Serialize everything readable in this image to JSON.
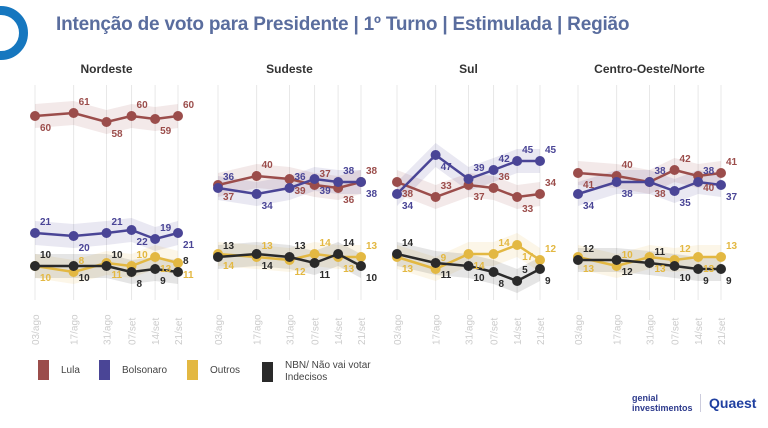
{
  "title": "Intenção de voto para Presidente | 1º Turno | Estimulada | Região",
  "colors": {
    "Lula": "#9b4d4b",
    "Bolsonaro": "#4a4596",
    "Outros": "#e3b842",
    "NBN": "#2a2a2a",
    "title": "#5a6d9e",
    "logo_ring": "#1677bf"
  },
  "legend": [
    {
      "label": "Lula",
      "color": "#9b4d4b"
    },
    {
      "label": "Bolsonaro",
      "color": "#4a4596"
    },
    {
      "label": "Outros",
      "color": "#e3b842"
    },
    {
      "label": "NBN/ Não vai votar Indecisos",
      "color": "#2a2a2a"
    }
  ],
  "logos": {
    "genial": "genial investimentos",
    "quaest": "Quaest"
  },
  "chart_data": [
    {
      "type": "line",
      "title": "Nordeste",
      "categories": [
        "03/ago",
        "17/ago",
        "31/ago",
        "07/set",
        "14/set",
        "21/set"
      ],
      "ylim": [
        0,
        65
      ],
      "series": [
        {
          "name": "Lula",
          "values": [
            60,
            61,
            58,
            60,
            59,
            60
          ]
        },
        {
          "name": "Bolsonaro",
          "values": [
            21,
            20,
            21,
            22,
            19,
            21
          ]
        },
        {
          "name": "Outros",
          "values": [
            10,
            8,
            11,
            10,
            13,
            11
          ]
        },
        {
          "name": "NBN/ Não vai votar Indecisos",
          "values": [
            10,
            10,
            10,
            8,
            9,
            8
          ]
        }
      ]
    },
    {
      "type": "line",
      "title": "Sudeste",
      "categories": [
        "03/ago",
        "17/ago",
        "31/ago",
        "07/set",
        "14/set",
        "21/set"
      ],
      "ylim": [
        0,
        65
      ],
      "series": [
        {
          "name": "Lula",
          "values": [
            37,
            40,
            39,
            37,
            36,
            38
          ]
        },
        {
          "name": "Bolsonaro",
          "values": [
            36,
            34,
            36,
            39,
            38,
            38
          ]
        },
        {
          "name": "Outros",
          "values": [
            14,
            13,
            12,
            14,
            13,
            13
          ]
        },
        {
          "name": "NBN/ Não vai votar Indecisos",
          "values": [
            13,
            14,
            13,
            11,
            14,
            10
          ]
        }
      ]
    },
    {
      "type": "line",
      "title": "Sul",
      "categories": [
        "03/ago",
        "17/ago",
        "31/ago",
        "07/set",
        "14/set",
        "21/set"
      ],
      "ylim": [
        0,
        65
      ],
      "series": [
        {
          "name": "Lula",
          "values": [
            38,
            33,
            37,
            36,
            33,
            34
          ]
        },
        {
          "name": "Bolsonaro",
          "values": [
            34,
            47,
            39,
            42,
            45,
            45
          ]
        },
        {
          "name": "Outros",
          "values": [
            13,
            9,
            14,
            14,
            17,
            12
          ]
        },
        {
          "name": "NBN/ Não vai votar Indecisos",
          "values": [
            14,
            11,
            10,
            8,
            5,
            9
          ]
        }
      ]
    },
    {
      "type": "line",
      "title": "Centro-Oeste/Norte",
      "categories": [
        "03/ago",
        "17/ago",
        "31/ago",
        "07/set",
        "14/set",
        "21/set"
      ],
      "ylim": [
        0,
        65
      ],
      "series": [
        {
          "name": "Lula",
          "values": [
            41,
            40,
            38,
            42,
            40,
            41
          ]
        },
        {
          "name": "Bolsonaro",
          "values": [
            34,
            38,
            38,
            35,
            38,
            37
          ]
        },
        {
          "name": "Outros",
          "values": [
            13,
            10,
            13,
            12,
            13,
            13
          ]
        },
        {
          "name": "NBN/ Não vai votar Indecisos",
          "values": [
            12,
            12,
            11,
            10,
            9,
            9
          ]
        }
      ]
    }
  ]
}
